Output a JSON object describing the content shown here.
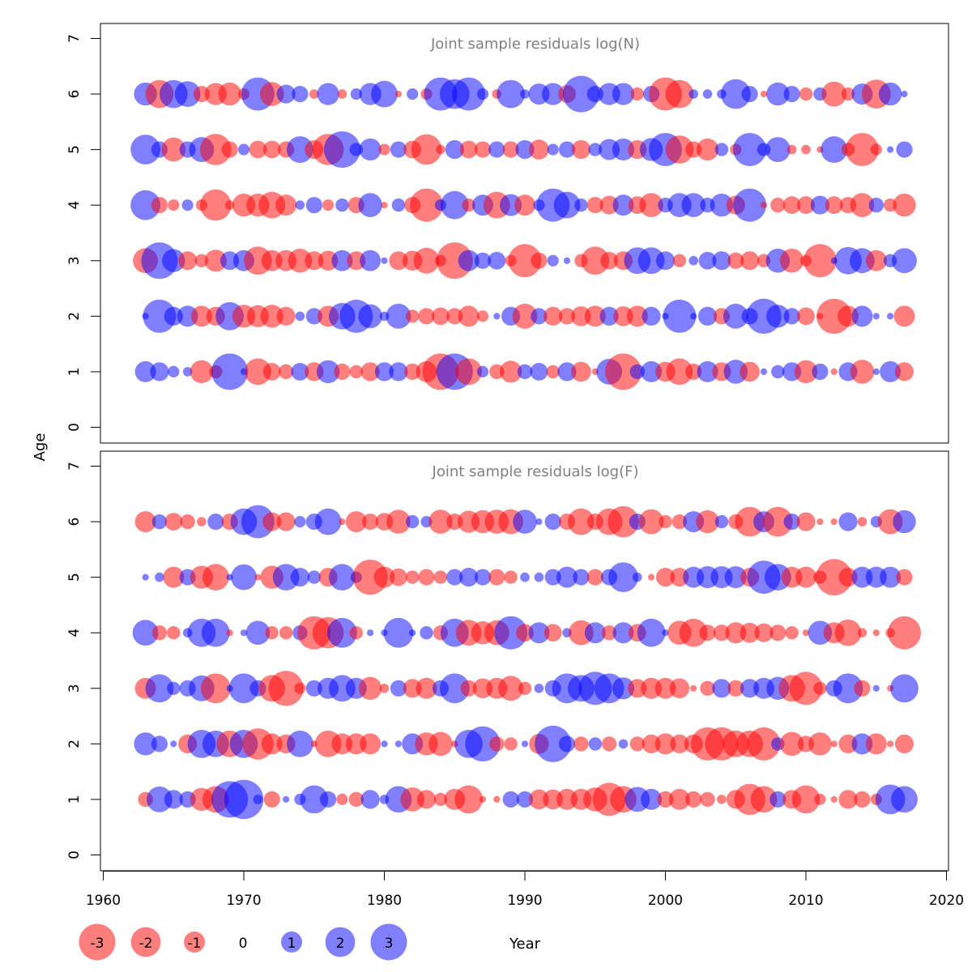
{
  "figure": {
    "ylabel": "Age",
    "xlabel": "Year",
    "x_ticks": [
      "1960",
      "1970",
      "1980",
      "1990",
      "2000",
      "2010",
      "2020"
    ],
    "y_ticks": [
      "0",
      "1",
      "2",
      "3",
      "4",
      "5",
      "6",
      "7"
    ]
  },
  "colors": {
    "negative": "#ff0000",
    "positive": "#0000ff",
    "opacity": 0.5,
    "panel_title": "#808080",
    "axis": "#000000"
  },
  "legend": {
    "entries": [
      {
        "label": "-3",
        "value": -3
      },
      {
        "label": "-2",
        "value": -2
      },
      {
        "label": "-1",
        "value": -1
      },
      {
        "label": "0",
        "value": 0
      },
      {
        "label": "1",
        "value": 1
      },
      {
        "label": "2",
        "value": 2
      },
      {
        "label": "3",
        "value": 3
      }
    ],
    "placement": "bottom"
  },
  "chart_data": [
    {
      "type": "scatter",
      "title": "Joint sample residuals log(N)",
      "xlabel": "Year",
      "ylabel": "Age",
      "xlim": [
        1960,
        2020
      ],
      "ylim": [
        0,
        7
      ],
      "grid": false,
      "encoding": "bubble area proportional to |residual|; red = negative, blue = positive",
      "years": [
        1963,
        1964,
        1965,
        1966,
        1967,
        1968,
        1969,
        1970,
        1971,
        1972,
        1973,
        1974,
        1975,
        1976,
        1977,
        1978,
        1979,
        1980,
        1981,
        1982,
        1983,
        1984,
        1985,
        1986,
        1987,
        1988,
        1989,
        1990,
        1991,
        1992,
        1993,
        1994,
        1995,
        1996,
        1997,
        1998,
        1999,
        2000,
        2001,
        2002,
        2003,
        2004,
        2005,
        2006,
        2007,
        2008,
        2009,
        2010,
        2011,
        2012,
        2013,
        2014,
        2015,
        2016,
        2017
      ],
      "ages": [
        1,
        2,
        3,
        4,
        5,
        6
      ],
      "residuals": {
        "6": [
          1.2,
          -1.8,
          1.8,
          1.5,
          -0.6,
          -1.1,
          -1.2,
          -0.3,
          2.5,
          -1.3,
          0.8,
          0.6,
          -0.2,
          1.1,
          -0.2,
          0.3,
          1.1,
          1.6,
          -0.1,
          0.3,
          -0.3,
          2.5,
          2.0,
          2.5,
          0.3,
          -0.2,
          1.8,
          0.2,
          1.0,
          1.1,
          -0.7,
          3.0,
          0.6,
          1.1,
          1.1,
          -0.4,
          0.6,
          -2.5,
          -1.8,
          0.2,
          0.2,
          0.2,
          2.0,
          0.6,
          -0.1,
          1.2,
          0.6,
          -0.4,
          0.4,
          -1.4,
          -0.4,
          1.0,
          -1.9,
          1.2,
          0.1
        ],
        "5": [
          2.0,
          0.6,
          -1.3,
          0.6,
          1.4,
          -2.2,
          -0.6,
          0.3,
          -0.7,
          -0.7,
          -0.6,
          1.6,
          -0.8,
          -2.2,
          3.0,
          0.4,
          1.1,
          -0.3,
          0.6,
          -0.7,
          -2.1,
          -0.2,
          0.8,
          -0.7,
          -0.6,
          0.6,
          -0.6,
          0.8,
          -0.9,
          0.3,
          0.6,
          -0.8,
          0.4,
          1.0,
          1.1,
          -0.8,
          1.2,
          2.5,
          -1.8,
          -0.6,
          -1.1,
          0.4,
          -0.3,
          2.5,
          0.4,
          1.4,
          -0.2,
          -0.2,
          -0.1,
          1.6,
          -0.4,
          -2.5,
          -0.3,
          0.1,
          0.6
        ],
        "4": [
          2.0,
          -0.6,
          -0.3,
          0.3,
          -0.3,
          -2.2,
          -0.2,
          -1.2,
          -1.2,
          -1.6,
          -1.0,
          0.2,
          0.6,
          -0.3,
          0.4,
          -0.6,
          1.3,
          -0.1,
          0.4,
          -0.6,
          -2.5,
          0.3,
          1.8,
          -0.4,
          1.0,
          -1.6,
          1.1,
          -1.0,
          0.3,
          2.5,
          1.6,
          0.4,
          -0.6,
          -0.8,
          1.0,
          -0.7,
          -1.3,
          0.5,
          1.3,
          1.3,
          0.5,
          1.2,
          -0.8,
          2.5,
          -0.1,
          -0.5,
          -0.7,
          -0.7,
          0.8,
          -0.7,
          -0.6,
          -1.3,
          0.5,
          -0.4,
          -1.2
        ],
        "3": [
          -1.4,
          3.0,
          1.2,
          -0.8,
          -0.4,
          -1.1,
          0.8,
          1.0,
          -1.8,
          -1.0,
          -1.0,
          -1.3,
          -0.8,
          -0.9,
          1.0,
          -0.8,
          1.0,
          0.1,
          -0.8,
          -0.9,
          -1.5,
          -0.3,
          -3.0,
          1.0,
          0.6,
          0.7,
          -0.3,
          -2.5,
          -0.6,
          0.3,
          0.1,
          -0.4,
          -1.8,
          -0.7,
          -0.8,
          1.6,
          1.6,
          0.8,
          -0.4,
          0.2,
          0.7,
          0.8,
          -0.6,
          -0.8,
          -0.4,
          1.3,
          -1.3,
          -0.3,
          -2.5,
          0.1,
          1.7,
          1.4,
          -1.0,
          0.4,
          1.4
        ],
        "2": [
          0.1,
          2.5,
          0.8,
          1.0,
          -1.0,
          -0.8,
          1.8,
          -1.2,
          -1.1,
          -1.2,
          -0.8,
          0.2,
          0.6,
          -1.0,
          1.6,
          2.5,
          1.3,
          0.2,
          1.4,
          -0.4,
          -0.6,
          -0.7,
          -0.6,
          -1.0,
          -0.3,
          0.1,
          0.8,
          -1.4,
          0.6,
          -0.8,
          -0.6,
          -0.9,
          -1.0,
          0.8,
          -0.9,
          -1.0,
          0.8,
          0.1,
          2.5,
          0.1,
          0.8,
          -0.6,
          1.4,
          0.6,
          2.8,
          1.2,
          0.6,
          -0.7,
          -0.1,
          -2.8,
          -1.0,
          1.0,
          0.1,
          0.1,
          -1.0
        ],
        "1": [
          1.0,
          0.8,
          0.3,
          0.2,
          -1.2,
          -0.4,
          3.0,
          0.1,
          -1.6,
          -0.7,
          -0.5,
          0.7,
          -0.8,
          1.2,
          -0.6,
          -0.4,
          -0.8,
          0.8,
          0.8,
          -0.6,
          -1.0,
          -3.0,
          3.0,
          -1.6,
          0.3,
          -0.5,
          -1.1,
          0.5,
          0.7,
          -0.4,
          0.8,
          -0.9,
          -0.1,
          1.5,
          -3.0,
          0.5,
          1.0,
          -0.9,
          -1.6,
          -0.6,
          1.0,
          -0.8,
          1.3,
          -0.9,
          0.1,
          0.4,
          0.8,
          -1.2,
          0.6,
          -0.1,
          0.8,
          -1.3,
          0.1,
          1.0,
          -0.8
        ]
      }
    },
    {
      "type": "scatter",
      "title": "Joint sample residuals log(F)",
      "xlabel": "Year",
      "ylabel": "Age",
      "xlim": [
        1960,
        2020
      ],
      "ylim": [
        0,
        7
      ],
      "grid": false,
      "encoding": "bubble area proportional to |residual|; red = negative, blue = positive",
      "years": [
        1963,
        1964,
        1965,
        1966,
        1967,
        1968,
        1969,
        1970,
        1971,
        1972,
        1973,
        1974,
        1975,
        1976,
        1977,
        1978,
        1979,
        1980,
        1981,
        1982,
        1983,
        1984,
        1985,
        1986,
        1987,
        1988,
        1989,
        1990,
        1991,
        1992,
        1993,
        1994,
        1995,
        1996,
        1997,
        1998,
        1999,
        2000,
        2001,
        2002,
        2003,
        2004,
        2005,
        2006,
        2007,
        2008,
        2009,
        2010,
        2011,
        2012,
        2013,
        2014,
        2015,
        2016,
        2017
      ],
      "ages": [
        1,
        2,
        3,
        4,
        5,
        6
      ],
      "residuals": {
        "6": [
          -1.0,
          0.5,
          -0.7,
          -0.5,
          -0.2,
          0.6,
          -0.6,
          1.6,
          2.5,
          -0.8,
          -0.8,
          0.3,
          0.6,
          1.6,
          -0.1,
          -1.0,
          -0.6,
          -0.7,
          -1.3,
          0.4,
          0.3,
          -1.3,
          -0.6,
          -1.1,
          -1.2,
          -1.3,
          -1.4,
          1.3,
          0.1,
          0.6,
          -0.6,
          -1.6,
          -0.6,
          -1.6,
          -2.2,
          0.6,
          -1.4,
          -0.4,
          -0.5,
          1.0,
          -1.2,
          0.4,
          -0.5,
          -2.0,
          1.0,
          -2.0,
          0.6,
          -0.8,
          -0.1,
          -0.1,
          0.8,
          -0.2,
          0.3,
          -1.4,
          1.2
        ],
        "5": [
          0.1,
          0.2,
          -1.0,
          0.6,
          -1.2,
          -1.6,
          0.1,
          1.5,
          -0.1,
          -1.2,
          1.6,
          0.8,
          0.4,
          -0.8,
          1.6,
          0.3,
          -2.8,
          -1.0,
          -0.7,
          -0.4,
          -0.6,
          -0.4,
          0.6,
          0.8,
          0.6,
          -0.6,
          -0.4,
          0.2,
          0.2,
          0.6,
          1.0,
          0.6,
          -0.6,
          0.6,
          2.0,
          0.2,
          -0.1,
          -0.8,
          -0.8,
          1.0,
          1.1,
          1.1,
          1.1,
          -0.8,
          2.5,
          1.6,
          -1.0,
          -1.0,
          -0.4,
          -3.0,
          -0.8,
          1.0,
          1.0,
          1.0,
          -0.6
        ],
        "4": [
          1.5,
          -0.5,
          -0.4,
          0.2,
          1.8,
          1.8,
          -0.1,
          0.1,
          1.3,
          -0.4,
          -0.4,
          0.5,
          -2.5,
          -2.2,
          2.0,
          -0.4,
          0.1,
          0.1,
          2.0,
          0.1,
          0.4,
          -0.5,
          1.8,
          -1.5,
          -1.2,
          -1.4,
          2.5,
          -0.7,
          1.0,
          -0.7,
          0.2,
          -1.4,
          1.0,
          -0.5,
          1.0,
          -0.7,
          1.8,
          0.1,
          -1.3,
          -1.8,
          -0.6,
          -0.6,
          -1.0,
          -0.9,
          -0.8,
          -0.6,
          -0.4,
          -0.1,
          1.3,
          -1.0,
          -1.6,
          -0.2,
          -0.1,
          -0.2,
          -2.5
        ],
        "3": [
          -1.0,
          1.8,
          0.4,
          0.6,
          1.5,
          -2.0,
          0.1,
          2.0,
          0.6,
          -1.6,
          -2.8,
          -0.3,
          0.6,
          1.0,
          1.6,
          1.0,
          -1.2,
          -0.2,
          0.6,
          -0.8,
          -1.0,
          0.6,
          2.0,
          -0.6,
          -0.9,
          -1.0,
          -1.4,
          -0.4,
          0.2,
          0.6,
          2.0,
          1.6,
          2.5,
          2.0,
          1.1,
          -0.8,
          -1.0,
          -1.0,
          -0.9,
          -0.1,
          -0.5,
          0.8,
          -0.6,
          0.8,
          1.0,
          1.2,
          -1.6,
          -2.5,
          -0.4,
          0.6,
          2.0,
          -0.6,
          0.1,
          -0.1,
          1.8
        ],
        "2": [
          1.2,
          0.6,
          0.1,
          -0.8,
          1.8,
          1.6,
          -1.6,
          1.8,
          -2.2,
          -1.0,
          -0.8,
          1.6,
          -0.1,
          -1.6,
          -1.0,
          -1.0,
          -1.0,
          0.1,
          0.1,
          1.0,
          -1.2,
          -1.3,
          -0.1,
          1.8,
          2.8,
          -0.5,
          -0.4,
          0.1,
          -0.9,
          3.0,
          0.6,
          -0.5,
          0.4,
          -0.5,
          0.2,
          -0.5,
          -0.8,
          -1.0,
          -0.8,
          -0.8,
          -2.5,
          -2.5,
          -1.6,
          -1.6,
          -2.5,
          0.4,
          -1.3,
          -0.6,
          -1.2,
          -0.1,
          -0.8,
          1.0,
          -1.0,
          -0.1,
          -0.8
        ],
        "1": [
          -0.5,
          1.5,
          0.8,
          0.6,
          -1.2,
          -1.6,
          3.0,
          3.5,
          0.2,
          -0.6,
          0.1,
          0.3,
          1.8,
          0.6,
          -0.3,
          -0.5,
          0.8,
          0.2,
          1.6,
          -1.3,
          -0.8,
          -0.4,
          -1.0,
          -1.8,
          -0.1,
          -0.1,
          0.6,
          0.6,
          -0.9,
          -0.9,
          -1.0,
          -1.0,
          -1.3,
          -2.5,
          -1.6,
          1.4,
          1.0,
          -0.6,
          -1.0,
          -0.6,
          -0.5,
          -0.2,
          -0.8,
          -2.2,
          -1.6,
          0.6,
          -0.8,
          -1.8,
          -0.3,
          -0.1,
          -0.8,
          -0.6,
          -0.3,
          2.0,
          1.6
        ]
      }
    }
  ]
}
